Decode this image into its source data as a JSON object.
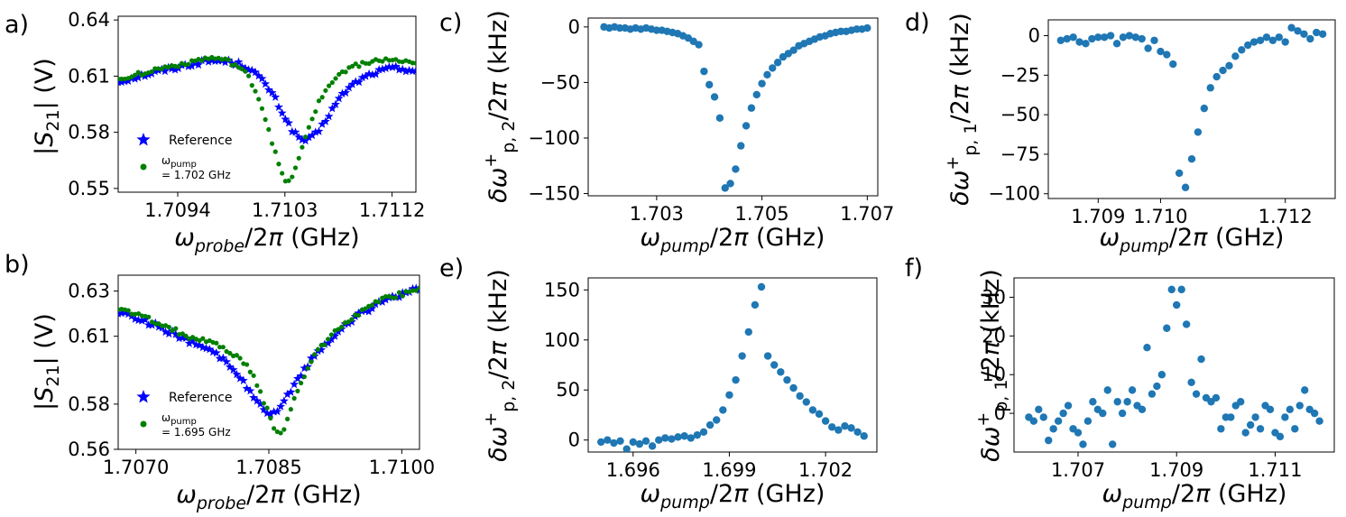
{
  "figure": {
    "description_free": true
  },
  "colors": {
    "star": "#0000ff",
    "green": "#008000",
    "blue": "#1f77b4"
  },
  "chart_data": [
    {
      "id": "a",
      "panel_label": "a)",
      "type": "scatter",
      "xlabel": "ω_probe/2π (GHz)",
      "ylabel": "|S21| (V)",
      "xlim": [
        1.7089,
        1.7114
      ],
      "ylim": [
        0.548,
        0.642
      ],
      "xticks": [
        1.7094,
        1.7103,
        1.7112
      ],
      "xtick_labels": [
        "1.7094",
        "1.7103",
        "1.7112"
      ],
      "yticks": [
        0.55,
        0.58,
        0.61,
        0.64
      ],
      "ytick_labels": [
        "0.55",
        "0.58",
        "0.61",
        "0.64"
      ],
      "legend": {
        "position": "lower-left",
        "entries": [
          {
            "series": "Reference",
            "label": "Reference"
          },
          {
            "series": "pump",
            "label": "ω_pump",
            "label2": "= 1.702 GHz"
          }
        ]
      },
      "series": [
        {
          "name": "Reference",
          "marker": "star",
          "color": "#0000ff",
          "shape": {
            "x_start": 1.7089,
            "x_end": 1.7114,
            "n": 90,
            "base": [
              [
                1.7089,
                0.609
              ],
              [
                1.7094,
                0.619
              ],
              [
                1.7097,
                0.626
              ],
              [
                1.71,
                0.631
              ],
              [
                1.7102,
                0.631
              ],
              [
                1.7106,
                0.623
              ],
              [
                1.7108,
                0.624
              ],
              [
                1.7112,
                0.622
              ],
              [
                1.7114,
                0.618
              ]
            ],
            "dips": [
              {
                "center": 1.71045,
                "width": 0.00032,
                "depth": 0.05
              }
            ],
            "noise": 0.0012
          }
        },
        {
          "name": "pump",
          "marker": "circle",
          "color": "#008000",
          "shape": {
            "x_start": 1.7089,
            "x_end": 1.7114,
            "n": 90,
            "base": [
              [
                1.7089,
                0.61
              ],
              [
                1.7094,
                0.62
              ],
              [
                1.7097,
                0.628
              ],
              [
                1.71,
                0.633
              ],
              [
                1.7102,
                0.631
              ],
              [
                1.7106,
                0.626
              ],
              [
                1.7108,
                0.626
              ],
              [
                1.7112,
                0.623
              ],
              [
                1.7114,
                0.619
              ]
            ],
            "dips": [
              {
                "center": 1.71032,
                "width": 0.00022,
                "depth": 0.075
              }
            ],
            "noise": 0.0012
          }
        }
      ]
    },
    {
      "id": "b",
      "panel_label": "b)",
      "type": "scatter",
      "xlabel": "ω_probe/2π (GHz)",
      "ylabel": "|S21| (V)",
      "xlim": [
        1.7068,
        1.7102
      ],
      "ylim": [
        0.56,
        0.637
      ],
      "xticks": [
        1.707,
        1.7085,
        1.71
      ],
      "xtick_labels": [
        "1.7070",
        "1.7085",
        "1.7100"
      ],
      "yticks": [
        0.56,
        0.58,
        0.61,
        0.63
      ],
      "ytick_labels": [
        "0.56",
        "0.58",
        "0.61",
        "0.63"
      ],
      "legend": {
        "position": "lower-left",
        "entries": [
          {
            "series": "Reference",
            "label": "Reference"
          },
          {
            "series": "pump",
            "label": "ω_pump",
            "label2": "= 1.695 GHz"
          }
        ]
      },
      "series": [
        {
          "name": "Reference",
          "marker": "star",
          "color": "#0000ff",
          "shape": {
            "x_start": 1.7068,
            "x_end": 1.7102,
            "n": 90,
            "base": [
              [
                1.7068,
                0.622
              ],
              [
                1.7072,
                0.617
              ],
              [
                1.7076,
                0.611
              ],
              [
                1.708,
                0.608
              ],
              [
                1.7083,
                0.605
              ],
              [
                1.7086,
                0.603
              ],
              [
                1.709,
                0.61
              ],
              [
                1.7094,
                0.62
              ],
              [
                1.7098,
                0.628
              ],
              [
                1.7102,
                0.632
              ]
            ],
            "dips": [
              {
                "center": 1.70852,
                "width": 0.00035,
                "depth": 0.028
              }
            ],
            "noise": 0.0011
          }
        },
        {
          "name": "pump",
          "marker": "circle",
          "color": "#008000",
          "shape": {
            "x_start": 1.7068,
            "x_end": 1.7102,
            "n": 90,
            "base": [
              [
                1.7068,
                0.623
              ],
              [
                1.7072,
                0.618
              ],
              [
                1.7076,
                0.612
              ],
              [
                1.708,
                0.61
              ],
              [
                1.7083,
                0.609
              ],
              [
                1.7086,
                0.607
              ],
              [
                1.709,
                0.612
              ],
              [
                1.7094,
                0.621
              ],
              [
                1.7098,
                0.628
              ],
              [
                1.7102,
                0.632
              ]
            ],
            "dips": [
              {
                "center": 1.70862,
                "width": 0.00025,
                "depth": 0.04
              }
            ],
            "noise": 0.0011
          }
        }
      ]
    },
    {
      "id": "c",
      "panel_label": "c)",
      "type": "scatter",
      "xlabel": "ω_pump/2π (GHz)",
      "ylabel": "δω⁺p,2/2π (kHz)",
      "xlim": [
        1.7017,
        1.7072
      ],
      "ylim": [
        -152,
        8
      ],
      "xticks": [
        1.703,
        1.705,
        1.707
      ],
      "xtick_labels": [
        "1.703",
        "1.705",
        "1.707"
      ],
      "yticks": [
        -150,
        -100,
        -50,
        0
      ],
      "ytick_labels": [
        "−150",
        "−100",
        "−50",
        "0"
      ],
      "series": [
        {
          "name": "data",
          "marker": "circle",
          "color": "#1f77b4",
          "x": [
            1.702,
            1.7021,
            1.7022,
            1.7023,
            1.7024,
            1.7025,
            1.7026,
            1.7027,
            1.7028,
            1.7029,
            1.703,
            1.7031,
            1.7032,
            1.7033,
            1.7034,
            1.7035,
            1.7036,
            1.7037,
            1.7038,
            1.7039,
            1.704,
            1.7041,
            1.7042,
            1.7043,
            1.7044,
            1.7045,
            1.7046,
            1.7047,
            1.7048,
            1.7049,
            1.705,
            1.7051,
            1.7052,
            1.7053,
            1.7054,
            1.7055,
            1.7056,
            1.7057,
            1.7058,
            1.7059,
            1.706,
            1.7061,
            1.7062,
            1.7063,
            1.7064,
            1.7065,
            1.7066,
            1.7067,
            1.7068,
            1.7069,
            1.707
          ],
          "y": [
            0,
            -1,
            0,
            -1,
            -1,
            -2,
            -1,
            -2,
            -1,
            -2,
            -3,
            -3,
            -4,
            -5,
            -6,
            -8,
            -10,
            -13,
            -16,
            -40,
            -52,
            -63,
            -82,
            -145,
            -141,
            -128,
            -107,
            -89,
            -73,
            -61,
            -51,
            -43,
            -37,
            -32,
            -27,
            -24,
            -21,
            -17,
            -15,
            -13,
            -11,
            -9,
            -8,
            -6,
            -5,
            -4,
            -4,
            -3,
            -2,
            -2,
            -1
          ]
        }
      ]
    },
    {
      "id": "d",
      "panel_label": "d)",
      "type": "scatter",
      "xlabel": "ω_pump/2π (GHz)",
      "ylabel": "δω⁺p,1/2π (kHz)",
      "xlim": [
        1.7082,
        1.7128
      ],
      "ylim": [
        -103,
        10
      ],
      "xticks": [
        1.709,
        1.71,
        1.712
      ],
      "xtick_labels": [
        "1.709",
        "1.710",
        "1.712"
      ],
      "yticks": [
        -100,
        -75,
        -50,
        -25,
        0
      ],
      "ytick_labels": [
        "−100",
        "−75",
        "−50",
        "−25",
        "0"
      ],
      "series": [
        {
          "name": "data",
          "marker": "circle",
          "color": "#1f77b4",
          "x": [
            1.7084,
            1.7085,
            1.7086,
            1.7087,
            1.7088,
            1.7089,
            1.709,
            1.7091,
            1.7092,
            1.7093,
            1.7094,
            1.7095,
            1.7096,
            1.7097,
            1.7098,
            1.7099,
            1.71,
            1.7101,
            1.7102,
            1.7103,
            1.7104,
            1.7105,
            1.7106,
            1.7107,
            1.7108,
            1.7109,
            1.711,
            1.7111,
            1.7112,
            1.7113,
            1.7114,
            1.7115,
            1.7116,
            1.7117,
            1.7118,
            1.7119,
            1.712,
            1.7121,
            1.7122,
            1.7123,
            1.7124,
            1.7125,
            1.7126
          ],
          "y": [
            -3,
            -2,
            -1,
            -4,
            -5,
            -2,
            -1,
            -1,
            0,
            -5,
            -1,
            0,
            -1,
            -2,
            -8,
            -3,
            -10,
            -12,
            -18,
            -87,
            -96,
            -78,
            -61,
            -46,
            -33,
            -26,
            -22,
            -19,
            -13,
            -9,
            -6,
            -4,
            -3,
            -1,
            -3,
            -1,
            -4,
            5,
            3,
            1,
            -2,
            2,
            1
          ]
        }
      ]
    },
    {
      "id": "e",
      "panel_label": "e)",
      "type": "scatter",
      "xlabel": "ω_pump/2π (GHz)",
      "ylabel": "δω⁺p,2/2π (kHz)",
      "xlim": [
        1.6946,
        1.7036
      ],
      "ylim": [
        -12,
        162
      ],
      "xticks": [
        1.696,
        1.699,
        1.702
      ],
      "xtick_labels": [
        "1.696",
        "1.699",
        "1.702"
      ],
      "yticks": [
        0,
        50,
        100,
        150
      ],
      "ytick_labels": [
        "0",
        "50",
        "100",
        "150"
      ],
      "series": [
        {
          "name": "data",
          "marker": "circle",
          "color": "#1f77b4",
          "x": [
            1.695,
            1.6952,
            1.6954,
            1.6956,
            1.6958,
            1.696,
            1.6962,
            1.6964,
            1.6966,
            1.6968,
            1.697,
            1.6972,
            1.6974,
            1.6976,
            1.6978,
            1.698,
            1.6982,
            1.6984,
            1.6986,
            1.6988,
            1.699,
            1.6992,
            1.6994,
            1.6996,
            1.6998,
            1.7,
            1.7002,
            1.7004,
            1.7006,
            1.7008,
            1.701,
            1.7012,
            1.7014,
            1.7016,
            1.7018,
            1.702,
            1.7022,
            1.7024,
            1.7026,
            1.7028,
            1.703,
            1.7032
          ],
          "y": [
            -2,
            0,
            -3,
            -1,
            -9,
            -2,
            -4,
            -1,
            -6,
            0,
            2,
            1,
            3,
            4,
            2,
            5,
            8,
            15,
            20,
            30,
            45,
            60,
            84,
            108,
            135,
            153,
            84,
            75,
            68,
            60,
            52,
            44,
            38,
            30,
            26,
            19,
            13,
            10,
            14,
            12,
            8,
            4
          ]
        }
      ]
    },
    {
      "id": "f",
      "panel_label": "f)",
      "type": "scatter",
      "xlabel": "ω_pump/2π (GHz)",
      "ylabel": "δω⁺p,1/2π (kHz)",
      "xlim": [
        1.7057,
        1.7122
      ],
      "ylim": [
        -10,
        35
      ],
      "xticks": [
        1.707,
        1.709,
        1.711
      ],
      "xtick_labels": [
        "1.707",
        "1.709",
        "1.711"
      ],
      "yticks": [
        0,
        10,
        20,
        30
      ],
      "ytick_labels": [
        "0",
        "10",
        "20",
        "30"
      ],
      "series": [
        {
          "name": "data",
          "marker": "circle",
          "color": "#1f77b4",
          "x": [
            1.706,
            1.7061,
            1.7062,
            1.7063,
            1.7064,
            1.7065,
            1.7066,
            1.7067,
            1.7068,
            1.7069,
            1.707,
            1.7071,
            1.7072,
            1.7073,
            1.7074,
            1.7075,
            1.7076,
            1.7077,
            1.7078,
            1.7079,
            1.708,
            1.7081,
            1.7082,
            1.7083,
            1.7084,
            1.7085,
            1.7086,
            1.7087,
            1.7088,
            1.7089,
            1.709,
            1.7091,
            1.7092,
            1.7093,
            1.7094,
            1.7095,
            1.7096,
            1.7097,
            1.7098,
            1.7099,
            1.71,
            1.7101,
            1.7102,
            1.7103,
            1.7104,
            1.7105,
            1.7106,
            1.7107,
            1.7108,
            1.7109,
            1.711,
            1.7111,
            1.7112,
            1.7113,
            1.7114,
            1.7115,
            1.7116,
            1.7117,
            1.7118,
            1.7119
          ],
          "y": [
            -1,
            -2,
            1,
            -1,
            -7,
            -4,
            -2,
            0,
            2,
            -4,
            -5,
            -8,
            -2,
            3,
            1,
            0,
            6,
            -8,
            3,
            0,
            3,
            6,
            2,
            1,
            17,
            5,
            7,
            10,
            22,
            32,
            28,
            32,
            23,
            8,
            5,
            14,
            4,
            3,
            4,
            -4,
            -1,
            -1,
            2,
            3,
            -5,
            -3,
            -1,
            -4,
            2,
            1,
            -5,
            -6,
            -1,
            1,
            -4,
            2,
            6,
            1,
            0,
            -2
          ]
        }
      ]
    }
  ]
}
